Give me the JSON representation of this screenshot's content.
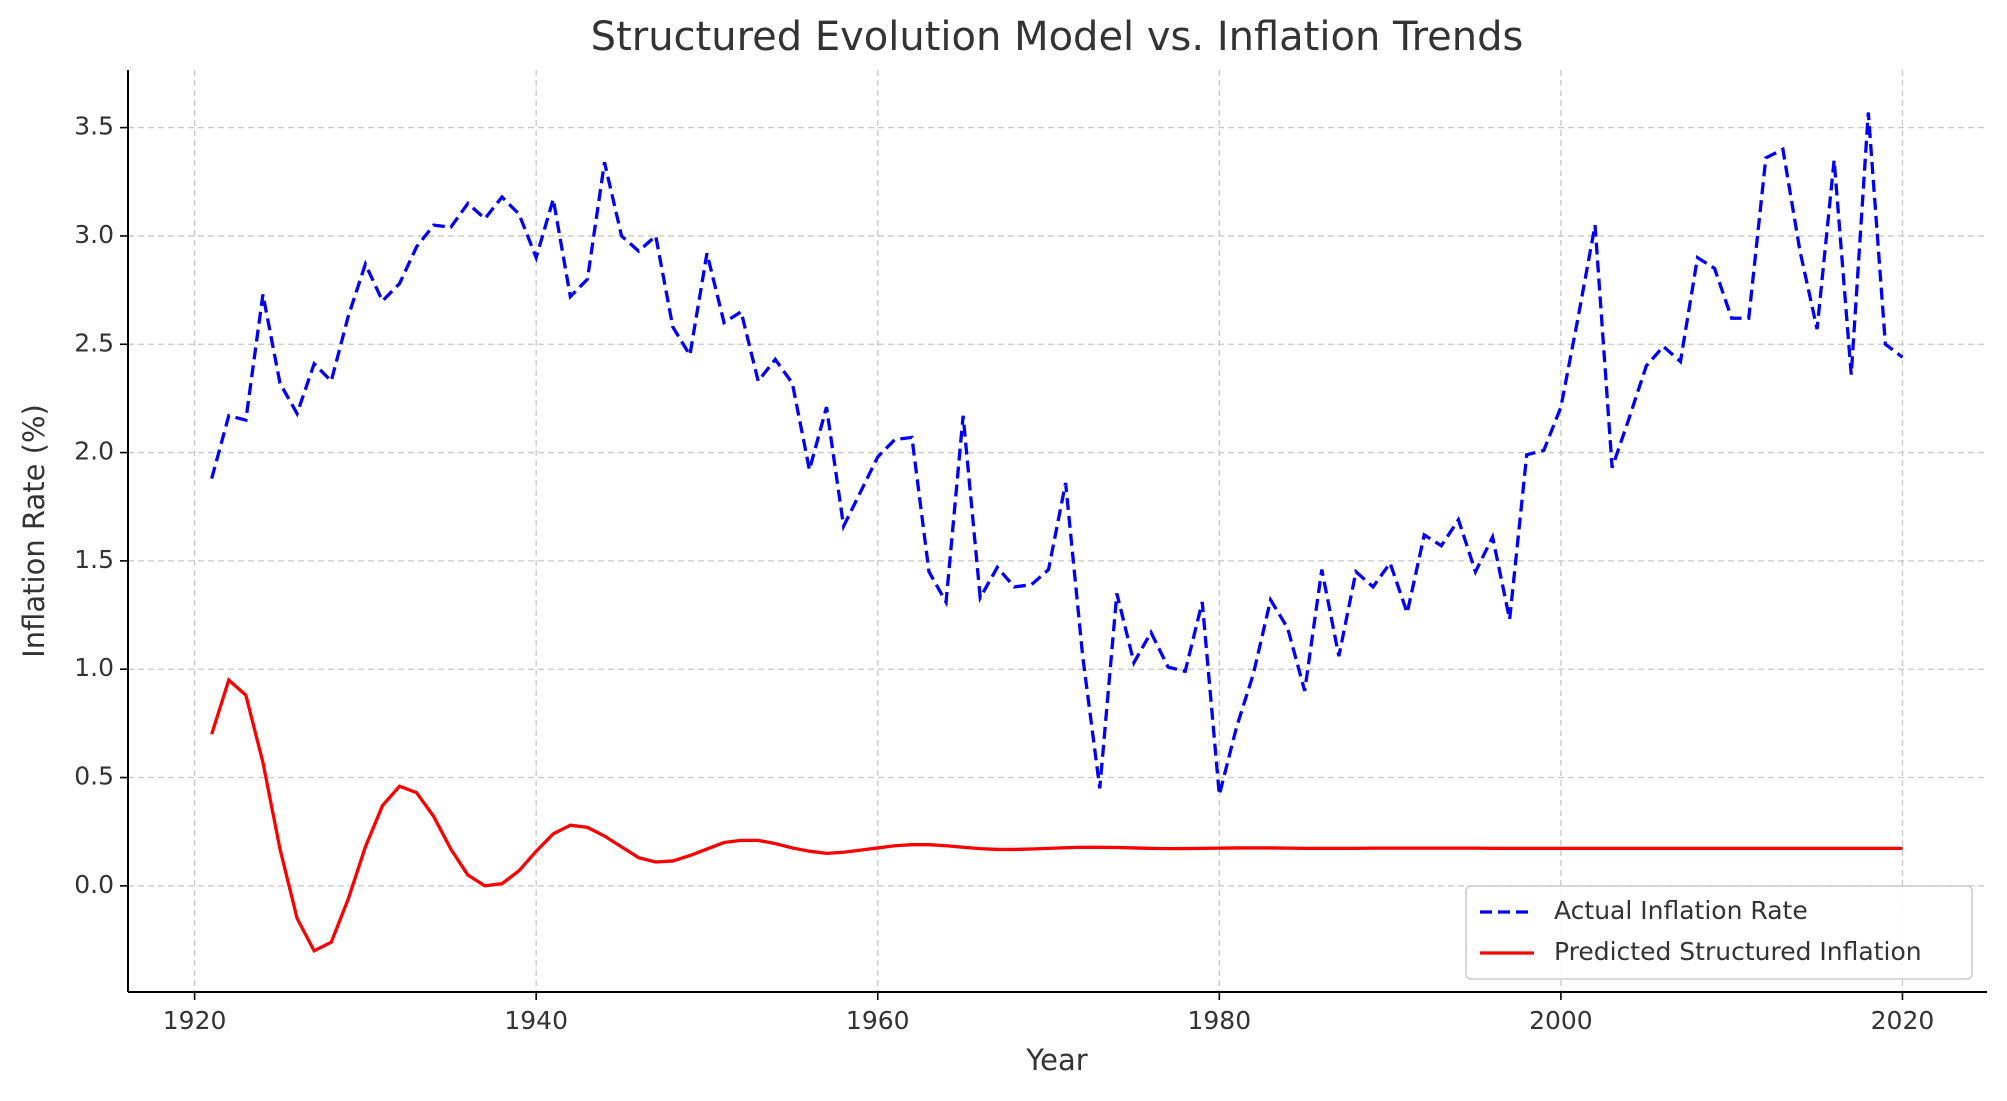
{
  "chart_data": {
    "type": "line",
    "title": "Structured Evolution Model vs. Inflation Trends",
    "xlabel": "Year",
    "ylabel": "Inflation Rate (%)",
    "x": [
      1921,
      1922,
      1923,
      1924,
      1925,
      1926,
      1927,
      1928,
      1929,
      1930,
      1931,
      1932,
      1933,
      1934,
      1935,
      1936,
      1937,
      1938,
      1939,
      1940,
      1941,
      1942,
      1943,
      1944,
      1945,
      1946,
      1947,
      1948,
      1949,
      1950,
      1951,
      1952,
      1953,
      1954,
      1955,
      1956,
      1957,
      1958,
      1959,
      1960,
      1961,
      1962,
      1963,
      1964,
      1965,
      1966,
      1967,
      1968,
      1969,
      1970,
      1971,
      1972,
      1973,
      1974,
      1975,
      1976,
      1977,
      1978,
      1979,
      1980,
      1981,
      1982,
      1983,
      1984,
      1985,
      1986,
      1987,
      1988,
      1989,
      1990,
      1991,
      1992,
      1993,
      1994,
      1995,
      1996,
      1997,
      1998,
      1999,
      2000,
      2001,
      2002,
      2003,
      2004,
      2005,
      2006,
      2007,
      2008,
      2009,
      2010,
      2011,
      2012,
      2013,
      2014,
      2015,
      2016,
      2017,
      2018,
      2019,
      2020
    ],
    "series": [
      {
        "name": "Actual Inflation Rate",
        "color": "#0000ff",
        "linestyle": "dashed",
        "values": [
          1.88,
          2.17,
          2.15,
          2.73,
          2.32,
          2.18,
          2.41,
          2.33,
          2.63,
          2.87,
          2.7,
          2.78,
          2.95,
          3.05,
          3.04,
          3.15,
          3.08,
          3.18,
          3.1,
          2.9,
          3.17,
          2.72,
          2.8,
          3.34,
          3.0,
          2.93,
          3.0,
          2.58,
          2.45,
          2.92,
          2.6,
          2.65,
          2.33,
          2.43,
          2.32,
          1.92,
          2.21,
          1.66,
          1.82,
          1.98,
          2.06,
          2.07,
          1.45,
          1.31,
          2.17,
          1.33,
          1.47,
          1.38,
          1.39,
          1.46,
          1.86,
          1.06,
          0.45,
          1.35,
          1.03,
          1.17,
          1.01,
          0.99,
          1.31,
          0.42,
          0.73,
          0.98,
          1.32,
          1.19,
          0.9,
          1.46,
          1.06,
          1.45,
          1.38,
          1.49,
          1.26,
          1.62,
          1.57,
          1.69,
          1.45,
          1.61,
          1.23,
          1.99,
          2.01,
          2.21,
          2.62,
          3.05,
          1.93,
          2.16,
          2.4,
          2.49,
          2.42,
          2.9,
          2.85,
          2.62,
          2.62,
          3.36,
          3.4,
          2.93,
          2.57,
          3.35,
          2.36,
          3.57,
          2.5,
          2.44
        ]
      },
      {
        "name": "Predicted Structured Inflation",
        "color": "#ff0000",
        "linestyle": "solid",
        "values": [
          0.7,
          0.95,
          0.88,
          0.57,
          0.17,
          -0.15,
          -0.3,
          -0.26,
          -0.06,
          0.18,
          0.37,
          0.46,
          0.43,
          0.32,
          0.17,
          0.05,
          0.0,
          0.01,
          0.07,
          0.16,
          0.24,
          0.28,
          0.27,
          0.23,
          0.18,
          0.13,
          0.11,
          0.115,
          0.14,
          0.17,
          0.2,
          0.21,
          0.21,
          0.195,
          0.175,
          0.16,
          0.15,
          0.155,
          0.165,
          0.175,
          0.185,
          0.19,
          0.19,
          0.185,
          0.178,
          0.172,
          0.168,
          0.168,
          0.17,
          0.173,
          0.176,
          0.178,
          0.178,
          0.177,
          0.175,
          0.173,
          0.172,
          0.172,
          0.173,
          0.174,
          0.175,
          0.175,
          0.175,
          0.174,
          0.173,
          0.173,
          0.173,
          0.173,
          0.174,
          0.174,
          0.174,
          0.174,
          0.174,
          0.174,
          0.174,
          0.173,
          0.173,
          0.173,
          0.173,
          0.173,
          0.173,
          0.173,
          0.173,
          0.173,
          0.173,
          0.173,
          0.173,
          0.173,
          0.173,
          0.173,
          0.173,
          0.173,
          0.173,
          0.173,
          0.173,
          0.173,
          0.173,
          0.173,
          0.173,
          0.173
        ]
      }
    ],
    "xlim": [
      1916.1,
      2024.95
    ],
    "ylim": [
      -0.49,
      3.766
    ],
    "xticks": [
      1920,
      1940,
      1960,
      1980,
      2000,
      2020
    ],
    "yticks": [
      {
        "value": 0,
        "label": "0.0"
      },
      0.5,
      {
        "value": 1,
        "label": "1.0"
      },
      1.5,
      {
        "value": 2,
        "label": "2.0"
      },
      2.5,
      {
        "value": 3,
        "label": "3.0"
      },
      3.5
    ],
    "grid": true,
    "legend": "lower right"
  }
}
